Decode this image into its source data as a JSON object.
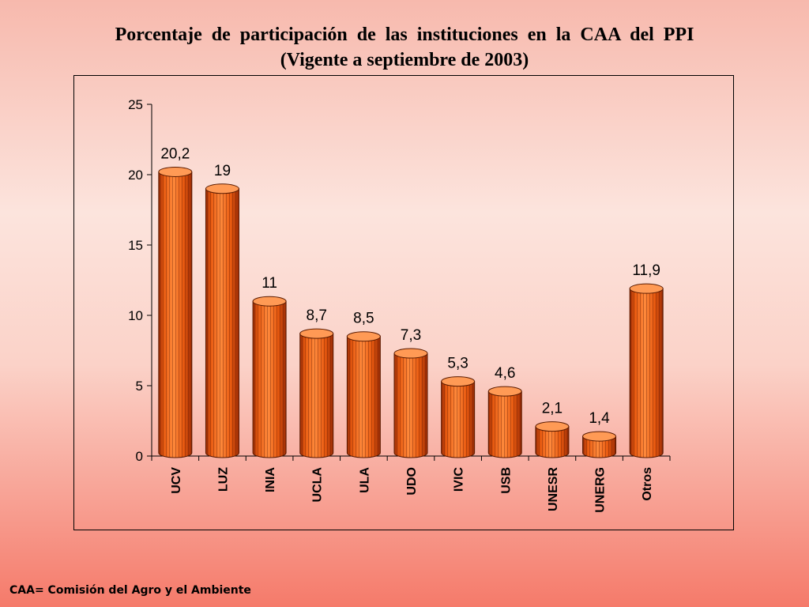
{
  "title": {
    "line1": "Porcentaje de participación de las instituciones en la CAA del PPI",
    "line2": "(Vigente  a  septiembre de  2003)"
  },
  "footnote": "CAA= Comisión del Agro y el Ambiente",
  "colors": {
    "bar_body": "#e85a10",
    "bar_light": "#ff8a3c",
    "bar_dark": "#9c2c05",
    "bar_top": "#ff9a55"
  },
  "chart_data": {
    "type": "bar",
    "categories": [
      "UCV",
      "LUZ",
      "INIA",
      "UCLA",
      "ULA",
      "UDO",
      "IVIC",
      "USB",
      "UNESR",
      "UNERG",
      "Otros"
    ],
    "values": [
      20.2,
      19,
      11,
      8.7,
      8.5,
      7.3,
      5.3,
      4.6,
      2.1,
      1.4,
      11.9
    ],
    "data_labels": [
      "20,2",
      "19",
      "11",
      "8,7",
      "8,5",
      "7,3",
      "5,3",
      "4,6",
      "2,1",
      "1,4",
      "11,9"
    ],
    "y_ticks": [
      0,
      5,
      10,
      15,
      20,
      25
    ],
    "ylim": [
      0,
      25
    ],
    "grid": false,
    "legend": "none",
    "style": "3d-cylinder"
  }
}
